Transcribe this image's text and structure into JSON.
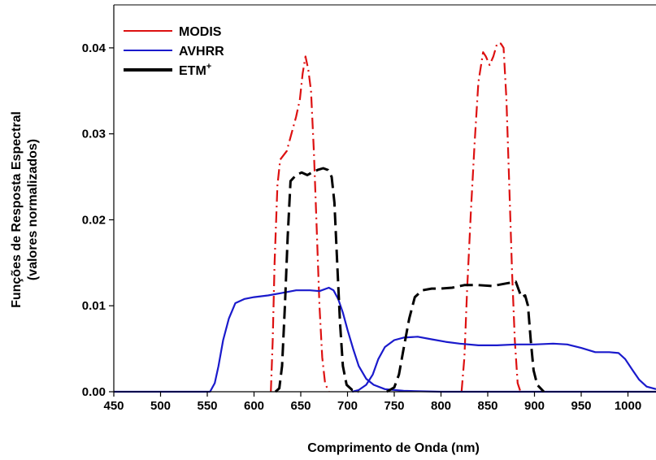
{
  "chart_data": {
    "type": "line",
    "title": "",
    "xlabel": "Comprimento de Onda (nm)",
    "ylabel": [
      "Funções de Resposta Espectral",
      "(valores normalizados)"
    ],
    "xlim": [
      450,
      1030
    ],
    "ylim": [
      0,
      0.045
    ],
    "x_ticks": [
      450,
      500,
      550,
      600,
      650,
      700,
      750,
      800,
      850,
      900,
      950,
      1000
    ],
    "y_ticks": [
      0.0,
      0.01,
      0.02,
      0.03,
      0.04
    ],
    "y_tick_labels": [
      "0.00",
      "0.01",
      "0.02",
      "0.03",
      "0.04"
    ],
    "grid": false,
    "legend_position": "top-left",
    "series": [
      {
        "name": "MODIS",
        "color": "#dd1111",
        "style": "dash-dot",
        "segments": [
          [
            [
              618,
              0
            ],
            [
              620,
              0.006
            ],
            [
              622,
              0.015
            ],
            [
              625,
              0.024
            ],
            [
              628,
              0.027
            ],
            [
              635,
              0.028
            ],
            [
              640,
              0.03
            ],
            [
              645,
              0.032
            ],
            [
              649,
              0.034
            ],
            [
              652,
              0.037
            ],
            [
              655,
              0.039
            ],
            [
              658,
              0.0375
            ],
            [
              661,
              0.035
            ],
            [
              664,
              0.028
            ],
            [
              667,
              0.019
            ],
            [
              670,
              0.01
            ],
            [
              673,
              0.004
            ],
            [
              676,
              0.001
            ],
            [
              680,
              0
            ]
          ],
          [
            [
              822,
              0
            ],
            [
              825,
              0.004
            ],
            [
              828,
              0.012
            ],
            [
              832,
              0.021
            ],
            [
              836,
              0.029
            ],
            [
              840,
              0.036
            ],
            [
              845,
              0.0395
            ],
            [
              848,
              0.039
            ],
            [
              852,
              0.038
            ],
            [
              856,
              0.039
            ],
            [
              860,
              0.0405
            ],
            [
              864,
              0.0405
            ],
            [
              867,
              0.04
            ],
            [
              870,
              0.034
            ],
            [
              873,
              0.024
            ],
            [
              876,
              0.014
            ],
            [
              879,
              0.006
            ],
            [
              882,
              0.001
            ],
            [
              885,
              0
            ]
          ]
        ]
      },
      {
        "name": "AVHRR",
        "color": "#1a1acc",
        "style": "solid",
        "segments": [
          [
            [
              450,
              0
            ],
            [
              553,
              0
            ],
            [
              558,
              0.001
            ],
            [
              562,
              0.003
            ],
            [
              567,
              0.006
            ],
            [
              573,
              0.0085
            ],
            [
              580,
              0.0103
            ],
            [
              590,
              0.0108
            ],
            [
              600,
              0.011
            ],
            [
              615,
              0.0112
            ],
            [
              630,
              0.0115
            ],
            [
              645,
              0.0118
            ],
            [
              660,
              0.0118
            ],
            [
              670,
              0.0117
            ],
            [
              680,
              0.0121
            ],
            [
              685,
              0.0118
            ],
            [
              690,
              0.0108
            ],
            [
              695,
              0.0092
            ],
            [
              700,
              0.0072
            ],
            [
              706,
              0.005
            ],
            [
              712,
              0.003
            ],
            [
              720,
              0.0015
            ],
            [
              728,
              0.0008
            ],
            [
              740,
              0.0003
            ],
            [
              760,
              0.0001
            ],
            [
              800,
              0
            ],
            [
              1030,
              0
            ]
          ],
          [
            [
              705,
              0
            ],
            [
              712,
              0.0002
            ],
            [
              720,
              0.0008
            ],
            [
              727,
              0.002
            ],
            [
              733,
              0.0038
            ],
            [
              740,
              0.0052
            ],
            [
              750,
              0.006
            ],
            [
              760,
              0.0063
            ],
            [
              775,
              0.0064
            ],
            [
              790,
              0.0061
            ],
            [
              805,
              0.0058
            ],
            [
              820,
              0.0056
            ],
            [
              840,
              0.0054
            ],
            [
              860,
              0.0054
            ],
            [
              880,
              0.0055
            ],
            [
              900,
              0.0055
            ],
            [
              920,
              0.0056
            ],
            [
              935,
              0.0055
            ],
            [
              950,
              0.0051
            ],
            [
              965,
              0.0046
            ],
            [
              980,
              0.0046
            ],
            [
              990,
              0.0045
            ],
            [
              997,
              0.0038
            ],
            [
              1005,
              0.0025
            ],
            [
              1012,
              0.0014
            ],
            [
              1020,
              0.0006
            ],
            [
              1030,
              0.0003
            ]
          ]
        ]
      },
      {
        "name": "ETM+",
        "color": "#000000",
        "style": "long-dash",
        "segments": [
          [
            [
              623,
              0
            ],
            [
              627,
              0.0004
            ],
            [
              630,
              0.003
            ],
            [
              633,
              0.01
            ],
            [
              636,
              0.018
            ],
            [
              639,
              0.0245
            ],
            [
              645,
              0.0252
            ],
            [
              651,
              0.0255
            ],
            [
              657,
              0.0252
            ],
            [
              662,
              0.0255
            ],
            [
              668,
              0.0258
            ],
            [
              674,
              0.026
            ],
            [
              679,
              0.0258
            ],
            [
              683,
              0.025
            ],
            [
              686,
              0.022
            ],
            [
              689,
              0.015
            ],
            [
              692,
              0.008
            ],
            [
              695,
              0.003
            ],
            [
              699,
              0.0008
            ],
            [
              705,
              0.0002
            ],
            [
              712,
              0
            ]
          ],
          [
            [
              742,
              0
            ],
            [
              750,
              0.0005
            ],
            [
              755,
              0.002
            ],
            [
              760,
              0.005
            ],
            [
              766,
              0.0085
            ],
            [
              772,
              0.011
            ],
            [
              780,
              0.0118
            ],
            [
              790,
              0.012
            ],
            [
              800,
              0.012
            ],
            [
              812,
              0.0121
            ],
            [
              825,
              0.0124
            ],
            [
              840,
              0.0124
            ],
            [
              855,
              0.0123
            ],
            [
              870,
              0.0126
            ],
            [
              880,
              0.0128
            ],
            [
              886,
              0.011
            ],
            [
              890,
              0.0112
            ],
            [
              893,
              0.01
            ],
            [
              896,
              0.006
            ],
            [
              899,
              0.0025
            ],
            [
              903,
              0.0008
            ],
            [
              910,
              0
            ]
          ]
        ]
      }
    ]
  }
}
